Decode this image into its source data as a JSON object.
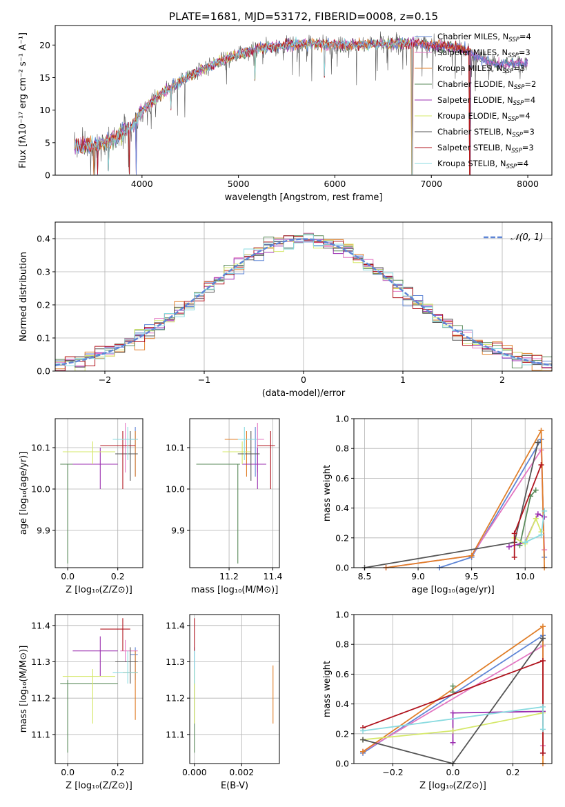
{
  "figure": {
    "title": "PLATE=1681, MJD=53172, FIBERID=0008, z=0.15"
  },
  "colors": {
    "Chabrier MILES": "#5f86d6",
    "Salpeter MILES": "#e377c2",
    "Kroupa MILES": "#e07f2a",
    "Chabrier ELODIE": "#5a8a5a",
    "Salpeter ELODIE": "#9b2fb0",
    "Kroupa ELODIE": "#d5e86a",
    "Chabrier STELIB": "#555555",
    "Salpeter STELIB": "#b0141e",
    "Kroupa STELIB": "#8adbe0"
  },
  "chart_data": [
    {
      "id": "spectrum",
      "type": "line",
      "title": "PLATE=1681, MJD=53172, FIBERID=0008, z=0.15",
      "xlabel": "wavelength [Angstrom, rest frame]",
      "ylabel": "Flux [fλ10⁻¹⁷ erg cm⁻² s⁻¹ A⁻¹]",
      "xlim": [
        3100,
        8250
      ],
      "ylim": [
        0,
        23
      ],
      "xticks": [
        "4000",
        "5000",
        "6000",
        "7000",
        "8000"
      ],
      "yticks": [
        "0",
        "5",
        "10",
        "15",
        "20"
      ],
      "legend_position": "right",
      "legend": [
        {
          "name": "Chabrier MILES",
          "nssp": "4"
        },
        {
          "name": "Salpeter MILES",
          "nssp": "3"
        },
        {
          "name": "Kroupa MILES",
          "nssp": "3"
        },
        {
          "name": "Chabrier ELODIE",
          "nssp": "2"
        },
        {
          "name": "Salpeter ELODIE",
          "nssp": "4"
        },
        {
          "name": "Kroupa ELODIE",
          "nssp": "4"
        },
        {
          "name": "Chabrier STELIB",
          "nssp": "3"
        },
        {
          "name": "Salpeter STELIB",
          "nssp": "3"
        },
        {
          "name": "Kroupa STELIB",
          "nssp": "4"
        }
      ],
      "continuum": [
        [
          3300,
          4.5
        ],
        [
          3500,
          4.5
        ],
        [
          3700,
          5.5
        ],
        [
          3900,
          7.5
        ],
        [
          4000,
          10.0
        ],
        [
          4200,
          12.5
        ],
        [
          4400,
          14.5
        ],
        [
          4600,
          16.0
        ],
        [
          4800,
          17.5
        ],
        [
          5000,
          18.5
        ],
        [
          5200,
          19.5
        ],
        [
          5500,
          20.0
        ],
        [
          5800,
          20.2
        ],
        [
          6100,
          20.0
        ],
        [
          6500,
          20.2
        ],
        [
          6800,
          20.3
        ],
        [
          7000,
          20.0
        ],
        [
          7300,
          19.6
        ],
        [
          7500,
          18.0
        ],
        [
          7700,
          17.0
        ],
        [
          7900,
          17.2
        ],
        [
          8000,
          17.2
        ]
      ],
      "dips": [
        {
          "x": 3500,
          "y": 0
        },
        {
          "x": 3540,
          "y": 0
        },
        {
          "x": 3650,
          "y": 0.5
        },
        {
          "x": 3870,
          "y": 0
        },
        {
          "x": 3940,
          "y": 0
        },
        {
          "x": 4300,
          "y": 10.0
        },
        {
          "x": 5170,
          "y": 14.5
        },
        {
          "x": 5890,
          "y": 15.0
        },
        {
          "x": 6800,
          "y": 0
        },
        {
          "x": 7400,
          "y": 0
        }
      ]
    },
    {
      "id": "residuals",
      "type": "area",
      "xlabel": "(data-model)/error",
      "ylabel": "Normed distribution",
      "xlim": [
        -2.5,
        2.5
      ],
      "ylim": [
        0,
        0.45
      ],
      "xticks": [
        "−2",
        "−1",
        "0",
        "1",
        "2"
      ],
      "yticks": [
        "0.0",
        "0.1",
        "0.2",
        "0.3",
        "0.4"
      ],
      "bin_width": 0.1,
      "reference_curve": "𝒩(0, 1)",
      "series_count": 9
    },
    {
      "id": "age-vs-z",
      "type": "scatter",
      "xlabel": "Z [log₁₀(Z/Z⊙)]",
      "ylabel": "age  [log₁₀(age/yr)]",
      "xlim": [
        -0.05,
        0.3
      ],
      "ylim": [
        9.81,
        10.17
      ],
      "xticks": [
        "0.0",
        "0.2"
      ],
      "yticks": [
        "9.9",
        "10.0",
        "10.1"
      ],
      "points": [
        {
          "series": "Chabrier MILES",
          "x": 0.27,
          "y": 10.12,
          "ex": [
            0.25,
            0.28
          ],
          "ey": [
            10.03,
            10.15
          ]
        },
        {
          "series": "Salpeter MILES",
          "x": 0.23,
          "y": 10.12,
          "ex": [
            0.21,
            0.28
          ],
          "ey": [
            10.04,
            10.16
          ]
        },
        {
          "series": "Kroupa MILES",
          "x": 0.27,
          "y": 10.12,
          "ex": [
            0.22,
            0.28
          ],
          "ey": [
            10.03,
            10.14
          ]
        },
        {
          "series": "Chabrier ELODIE",
          "x": 0.0,
          "y": 10.06,
          "ex": [
            -0.03,
            0.03
          ],
          "ey": [
            9.82,
            10.06
          ]
        },
        {
          "series": "Salpeter ELODIE",
          "x": 0.13,
          "y": 10.06,
          "ex": [
            0.02,
            0.2
          ],
          "ey": [
            10.0,
            10.1
          ]
        },
        {
          "series": "Kroupa ELODIE",
          "x": 0.1,
          "y": 10.09,
          "ex": [
            -0.02,
            0.19
          ],
          "ey": [
            10.06,
            10.115
          ]
        },
        {
          "series": "Chabrier STELIB",
          "x": 0.25,
          "y": 10.085,
          "ex": [
            0.19,
            0.28
          ],
          "ey": [
            10.02,
            10.14
          ]
        },
        {
          "series": "Salpeter STELIB",
          "x": 0.22,
          "y": 10.105,
          "ex": [
            0.13,
            0.27
          ],
          "ey": [
            10.0,
            10.14
          ]
        },
        {
          "series": "Kroupa STELIB",
          "x": 0.24,
          "y": 10.12,
          "ex": [
            0.18,
            0.28
          ],
          "ey": [
            10.07,
            10.15
          ]
        }
      ]
    },
    {
      "id": "age-vs-mass",
      "type": "scatter",
      "xlabel": "mass [log₁₀(M/M⊙)]",
      "ylabel": "",
      "xlim": [
        11.02,
        11.43
      ],
      "ylim": [
        9.81,
        10.17
      ],
      "xticks": [
        "11.2",
        "11.4"
      ],
      "yticks": [
        "9.9",
        "10.0",
        "10.1"
      ],
      "points": [
        {
          "series": "Chabrier MILES",
          "x": 11.32,
          "y": 10.12,
          "ex": [
            11.25,
            11.34
          ],
          "ey": [
            10.03,
            10.15
          ]
        },
        {
          "series": "Salpeter MILES",
          "x": 11.33,
          "y": 10.12,
          "ex": [
            11.3,
            11.36
          ],
          "ey": [
            10.04,
            10.16
          ]
        },
        {
          "series": "Kroupa MILES",
          "x": 11.28,
          "y": 10.12,
          "ex": [
            11.18,
            11.33
          ],
          "ey": [
            10.03,
            10.14
          ]
        },
        {
          "series": "Chabrier ELODIE",
          "x": 11.24,
          "y": 10.06,
          "ex": [
            11.05,
            11.25
          ],
          "ey": [
            9.82,
            10.06
          ]
        },
        {
          "series": "Salpeter ELODIE",
          "x": 11.33,
          "y": 10.06,
          "ex": [
            11.26,
            11.37
          ],
          "ey": [
            10.0,
            10.1
          ]
        },
        {
          "series": "Kroupa ELODIE",
          "x": 11.26,
          "y": 10.09,
          "ex": [
            11.17,
            11.3
          ],
          "ey": [
            10.06,
            10.115
          ]
        },
        {
          "series": "Chabrier STELIB",
          "x": 11.3,
          "y": 10.085,
          "ex": [
            11.24,
            11.34
          ],
          "ey": [
            10.02,
            10.14
          ]
        },
        {
          "series": "Salpeter STELIB",
          "x": 11.39,
          "y": 10.105,
          "ex": [
            11.33,
            11.41
          ],
          "ey": [
            10.0,
            10.14
          ]
        },
        {
          "series": "Kroupa STELIB",
          "x": 11.27,
          "y": 10.12,
          "ex": [
            11.24,
            11.33
          ],
          "ey": [
            10.07,
            10.15
          ]
        }
      ]
    },
    {
      "id": "weight-vs-age",
      "type": "line",
      "xlabel": "age  [log₁₀(age/yr)]",
      "ylabel": "mass weight",
      "xlim": [
        8.4,
        10.25
      ],
      "ylim": [
        0,
        1
      ],
      "xticks": [
        "8.5",
        "9.0",
        "9.5",
        "10.0"
      ],
      "yticks": [
        "0.0",
        "0.2",
        "0.4",
        "0.6",
        "0.8",
        "1.0"
      ],
      "series": [
        {
          "name": "Chabrier MILES",
          "points": [
            [
              9.2,
              0.0
            ],
            [
              9.5,
              0.07
            ],
            [
              10.15,
              0.86
            ],
            [
              10.18,
              0.07
            ]
          ]
        },
        {
          "name": "Salpeter MILES",
          "points": [
            [
              8.7,
              0.0
            ],
            [
              9.5,
              0.08
            ],
            [
              10.15,
              0.79
            ],
            [
              10.18,
              0.12
            ]
          ]
        },
        {
          "name": "Kroupa MILES",
          "points": [
            [
              8.7,
              0.0
            ],
            [
              9.5,
              0.08
            ],
            [
              10.15,
              0.92
            ],
            [
              10.18,
              0.0
            ]
          ]
        },
        {
          "name": "Chabrier ELODIE",
          "points": [
            [
              9.95,
              0.15
            ],
            [
              10.05,
              0.48
            ],
            [
              10.1,
              0.52
            ]
          ]
        },
        {
          "name": "Salpeter ELODIE",
          "points": [
            [
              9.85,
              0.14
            ],
            [
              10.0,
              0.17
            ],
            [
              10.12,
              0.36
            ],
            [
              10.18,
              0.34
            ]
          ]
        },
        {
          "name": "Kroupa ELODIE",
          "points": [
            [
              9.9,
              0.2
            ],
            [
              10.0,
              0.16
            ],
            [
              10.1,
              0.33
            ],
            [
              10.15,
              0.24
            ]
          ]
        },
        {
          "name": "Chabrier STELIB",
          "points": [
            [
              8.5,
              0.0
            ],
            [
              9.9,
              0.17
            ],
            [
              10.12,
              0.84
            ]
          ]
        },
        {
          "name": "Salpeter STELIB",
          "points": [
            [
              9.9,
              0.07
            ],
            [
              9.9,
              0.23
            ],
            [
              10.15,
              0.69
            ]
          ]
        },
        {
          "name": "Kroupa STELIB",
          "points": [
            [
              10.0,
              0.17
            ],
            [
              10.15,
              0.22
            ],
            [
              10.18,
              0.38
            ]
          ]
        }
      ]
    },
    {
      "id": "mass-vs-z",
      "type": "scatter",
      "xlabel": "Z [log₁₀(Z/Z⊙)]",
      "ylabel": "mass [log₁₀(M/M⊙)]",
      "xlim": [
        -0.05,
        0.3
      ],
      "ylim": [
        11.02,
        11.43
      ],
      "xticks": [
        "0.0",
        "0.2"
      ],
      "yticks": [
        "11.1",
        "11.2",
        "11.3",
        "11.4"
      ],
      "points": [
        {
          "series": "Chabrier MILES",
          "x": 0.27,
          "y": 11.32,
          "ex": [
            0.25,
            0.28
          ],
          "ey": [
            11.25,
            11.34
          ]
        },
        {
          "series": "Salpeter MILES",
          "x": 0.23,
          "y": 11.33,
          "ex": [
            0.21,
            0.28
          ],
          "ey": [
            11.3,
            11.36
          ]
        },
        {
          "series": "Kroupa MILES",
          "x": 0.27,
          "y": 11.27,
          "ex": [
            0.22,
            0.28
          ],
          "ey": [
            11.14,
            11.33
          ]
        },
        {
          "series": "Chabrier ELODIE",
          "x": 0.0,
          "y": 11.24,
          "ex": [
            -0.03,
            0.2
          ],
          "ey": [
            11.05,
            11.25
          ]
        },
        {
          "series": "Salpeter ELODIE",
          "x": 0.13,
          "y": 11.33,
          "ex": [
            0.02,
            0.2
          ],
          "ey": [
            11.26,
            11.37
          ]
        },
        {
          "series": "Kroupa ELODIE",
          "x": 0.1,
          "y": 11.26,
          "ex": [
            -0.02,
            0.19
          ],
          "ey": [
            11.13,
            11.28
          ]
        },
        {
          "series": "Chabrier STELIB",
          "x": 0.25,
          "y": 11.3,
          "ex": [
            0.19,
            0.28
          ],
          "ey": [
            11.24,
            11.34
          ]
        },
        {
          "series": "Salpeter STELIB",
          "x": 0.22,
          "y": 11.39,
          "ex": [
            0.13,
            0.25
          ],
          "ey": [
            11.33,
            11.42
          ]
        },
        {
          "series": "Kroupa STELIB",
          "x": 0.24,
          "y": 11.27,
          "ex": [
            0.18,
            0.28
          ],
          "ey": [
            11.24,
            11.33
          ]
        }
      ]
    },
    {
      "id": "mass-vs-ebv",
      "type": "scatter",
      "xlabel": "E(B-V)",
      "ylabel": "",
      "xlim": [
        -0.0002,
        0.0036
      ],
      "ylim": [
        11.02,
        11.43
      ],
      "xticks": [
        "0.000",
        "0.002"
      ],
      "yticks": [
        "11.1",
        "11.2",
        "11.3",
        "11.4"
      ],
      "points": [
        {
          "series": "Chabrier MILES",
          "x": 0.0,
          "y": 11.32,
          "ex": [
            0.0,
            0.0
          ],
          "ey": [
            11.25,
            11.34
          ]
        },
        {
          "series": "Kroupa MILES",
          "x": 0.00333,
          "y": 11.21,
          "ex": [
            0.00333,
            0.00333
          ],
          "ey": [
            11.13,
            11.29
          ]
        },
        {
          "series": "Chabrier ELODIE",
          "x": 0.0,
          "y": 11.15,
          "ex": [
            0.0,
            0.0
          ],
          "ey": [
            11.05,
            11.25
          ]
        },
        {
          "series": "Kroupa ELODIE",
          "x": 0.0,
          "y": 11.2,
          "ex": [
            0.0,
            0.0
          ],
          "ey": [
            11.13,
            11.28
          ]
        },
        {
          "series": "Salpeter STELIB",
          "x": 0.0,
          "y": 11.39,
          "ex": [
            0.0,
            0.0
          ],
          "ey": [
            11.33,
            11.42
          ]
        },
        {
          "series": "Kroupa STELIB",
          "x": 0.0,
          "y": 11.27,
          "ex": [
            0.0,
            0.0
          ],
          "ey": [
            11.24,
            11.33
          ]
        }
      ]
    },
    {
      "id": "weight-vs-z",
      "type": "line",
      "xlabel": "Z [log₁₀(Z/Z⊙)]",
      "ylabel": "mass weight",
      "xlim": [
        -0.33,
        0.33
      ],
      "ylim": [
        0,
        1
      ],
      "xticks": [
        "−0.2",
        "0.0",
        "0.2"
      ],
      "yticks": [
        "0.0",
        "0.2",
        "0.4",
        "0.6",
        "0.8",
        "1.0"
      ],
      "series": [
        {
          "name": "Chabrier MILES",
          "points": [
            [
              -0.3,
              0.07
            ],
            [
              0.3,
              0.86
            ],
            [
              0.3,
              0.07
            ]
          ]
        },
        {
          "name": "Salpeter MILES",
          "points": [
            [
              -0.3,
              0.08
            ],
            [
              0.3,
              0.79
            ],
            [
              0.3,
              0.12
            ]
          ]
        },
        {
          "name": "Kroupa MILES",
          "points": [
            [
              -0.3,
              0.08
            ],
            [
              0.3,
              0.92
            ],
            [
              0.3,
              0.0
            ]
          ]
        },
        {
          "name": "Chabrier ELODIE",
          "points": [
            [
              0.0,
              0.48
            ],
            [
              0.0,
              0.52
            ]
          ]
        },
        {
          "name": "Salpeter ELODIE",
          "points": [
            [
              0.0,
              0.14
            ],
            [
              0.0,
              0.34
            ],
            [
              0.3,
              0.35
            ]
          ]
        },
        {
          "name": "Kroupa ELODIE",
          "points": [
            [
              -0.3,
              0.16
            ],
            [
              0.0,
              0.22
            ],
            [
              0.3,
              0.34
            ]
          ]
        },
        {
          "name": "Chabrier STELIB",
          "points": [
            [
              -0.3,
              0.16
            ],
            [
              0.0,
              0.0
            ],
            [
              0.3,
              0.84
            ]
          ]
        },
        {
          "name": "Salpeter STELIB",
          "points": [
            [
              -0.3,
              0.24
            ],
            [
              0.3,
              0.69
            ],
            [
              0.3,
              0.07
            ]
          ]
        },
        {
          "name": "Kroupa STELIB",
          "points": [
            [
              -0.3,
              0.22
            ],
            [
              0.3,
              0.38
            ],
            [
              0.3,
              0.23
            ]
          ]
        }
      ]
    }
  ]
}
